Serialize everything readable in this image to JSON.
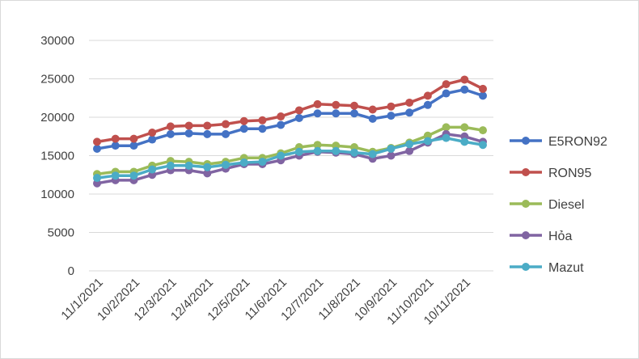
{
  "chart_data": {
    "type": "line",
    "title": "",
    "xlabel": "",
    "ylabel": "",
    "ylim": [
      0,
      30000
    ],
    "yticks": [
      0,
      5000,
      10000,
      15000,
      20000,
      25000,
      30000
    ],
    "grid": "horizontal",
    "legend": "right",
    "xtick_labels": [
      "11/1/2021",
      "10/2/2021",
      "12/3/2021",
      "12/4/2021",
      "12/5/2021",
      "11/6/2021",
      "12/7/2021",
      "11/8/2021",
      "10/9/2021",
      "11/10/2021",
      "10/11/2021"
    ],
    "xtick_positions": [
      0,
      2,
      4,
      6,
      8,
      10,
      12,
      14,
      16,
      18,
      20
    ],
    "point_count": 22,
    "series": [
      {
        "name": "E5RON92",
        "color": "#4472c4",
        "values": [
          15900,
          16300,
          16300,
          17100,
          17800,
          17900,
          17800,
          17800,
          18500,
          18500,
          19000,
          19900,
          20500,
          20500,
          20500,
          19800,
          20200,
          20600,
          21600,
          23100,
          23600,
          22800
        ]
      },
      {
        "name": "RON95",
        "color": "#c0504d",
        "values": [
          16800,
          17200,
          17200,
          18000,
          18800,
          18900,
          18900,
          19100,
          19500,
          19600,
          20100,
          20900,
          21700,
          21600,
          21500,
          21000,
          21400,
          21900,
          22800,
          24300,
          24900,
          23700
        ]
      },
      {
        "name": "Diesel",
        "color": "#9bbb59",
        "values": [
          12600,
          12900,
          12900,
          13700,
          14300,
          14200,
          13900,
          14200,
          14700,
          14700,
          15300,
          16100,
          16400,
          16300,
          16100,
          15500,
          16000,
          16700,
          17600,
          18700,
          18700,
          18300
        ]
      },
      {
        "name": "Hỏa",
        "color": "#8064a2",
        "values": [
          11400,
          11800,
          11800,
          12500,
          13100,
          13100,
          12700,
          13300,
          13900,
          13900,
          14400,
          15000,
          15500,
          15400,
          15200,
          14600,
          15000,
          15600,
          16700,
          17800,
          17500,
          16800
        ]
      },
      {
        "name": "Mazut",
        "color": "#4bacc6",
        "values": [
          12100,
          12400,
          12400,
          13200,
          13700,
          13700,
          13500,
          13800,
          14100,
          14200,
          15000,
          15500,
          15600,
          15600,
          15400,
          15200,
          15900,
          16500,
          16900,
          17300,
          16800,
          16400
        ]
      }
    ]
  }
}
